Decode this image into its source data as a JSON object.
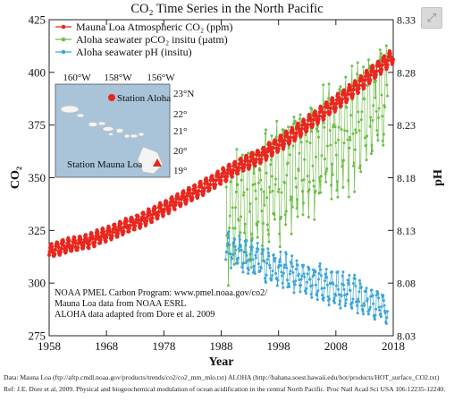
{
  "chart_data": {
    "type": "line",
    "title": "CO₂ Time Series in the North Pacific",
    "xlabel": "Year",
    "ylabel_left": "CO₂",
    "ylabel_right": "pH",
    "xlim": [
      1958,
      2018
    ],
    "ylim_left": [
      275,
      425
    ],
    "ylim_right": [
      8.03,
      8.33
    ],
    "x_ticks": [
      "1958",
      "1968",
      "1978",
      "1988",
      "1998",
      "2008",
      "2018"
    ],
    "y_left_ticks": [
      "275",
      "300",
      "325",
      "350",
      "375",
      "400",
      "425"
    ],
    "y_right_ticks": [
      "8.03",
      "8.08",
      "8.13",
      "8.18",
      "8.23",
      "8.28",
      "8.33"
    ],
    "legend_position": "top-left",
    "series": [
      {
        "name": "Mauna Loa Atmospheric CO₂ (ppm)",
        "axis": "left",
        "color": "#e8271e",
        "x": [
          1958,
          1960,
          1965,
          1970,
          1975,
          1980,
          1985,
          1990,
          1995,
          2000,
          2005,
          2010,
          2015,
          2018
        ],
        "y": [
          315,
          317,
          320,
          325.5,
          331,
          338.5,
          345.5,
          354,
          360.5,
          369.5,
          379.5,
          389.5,
          401,
          408
        ],
        "seasonal_amplitude": 3.2
      },
      {
        "name": "Aloha seawater pCO₂ insitu (µatm)",
        "axis": "left",
        "color": "#6dbf45",
        "x": [
          1988.8,
          1990,
          1995,
          2000,
          2005,
          2010,
          2015,
          2017
        ],
        "y": [
          328,
          334,
          342,
          352,
          362,
          372,
          384,
          390
        ],
        "seasonal_amplitude": 22
      },
      {
        "name": "Aloha seawater pH (insitu)",
        "axis": "right",
        "color": "#3aa6d8",
        "x": [
          1988.8,
          1990,
          1995,
          2000,
          2005,
          2010,
          2015,
          2017
        ],
        "y": [
          8.115,
          8.112,
          8.1,
          8.09,
          8.08,
          8.072,
          8.06,
          8.056
        ],
        "seasonal_amplitude": 0.013
      }
    ],
    "inset_map": {
      "lon_labels": [
        "160°W",
        "158°W",
        "156°W"
      ],
      "lat_labels": [
        "23°N",
        "22°",
        "21°",
        "20°",
        "19°"
      ],
      "station_aloha_label": "Station Aloha",
      "station_mauna_loa_label": "Station Mauna Loa",
      "station_aloha_color": "#e8271e",
      "station_mauna_loa_color": "#e8271e",
      "sea_color": "#a9c4d8"
    },
    "annotation_lines": [
      "NOAA PMEL Carbon Program: www.pmel.noaa.gov/co2/",
      "Mauna Loa data from NOAA ESRL",
      "ALOHA data adapted from Dore et al. 2009"
    ]
  },
  "caption": {
    "line1": "Data: Mauna Loa (ftp://aftp.cmdl.noaa.gov/products/trends/co2/co2_mm_mlo.txt)  ALOHA (http://hahana.soest.hawaii.edu/hot/products/HOT_surface_CO2.txt)",
    "line2": "Ref: J.E. Dore et al, 2009. Physical and biogeochemical modulation of ocean acidification in the central North Pacific. Proc Natl Acad Sci USA 106:12235-12240."
  },
  "controls": {
    "expand_icon": "expand-arrows-icon"
  }
}
